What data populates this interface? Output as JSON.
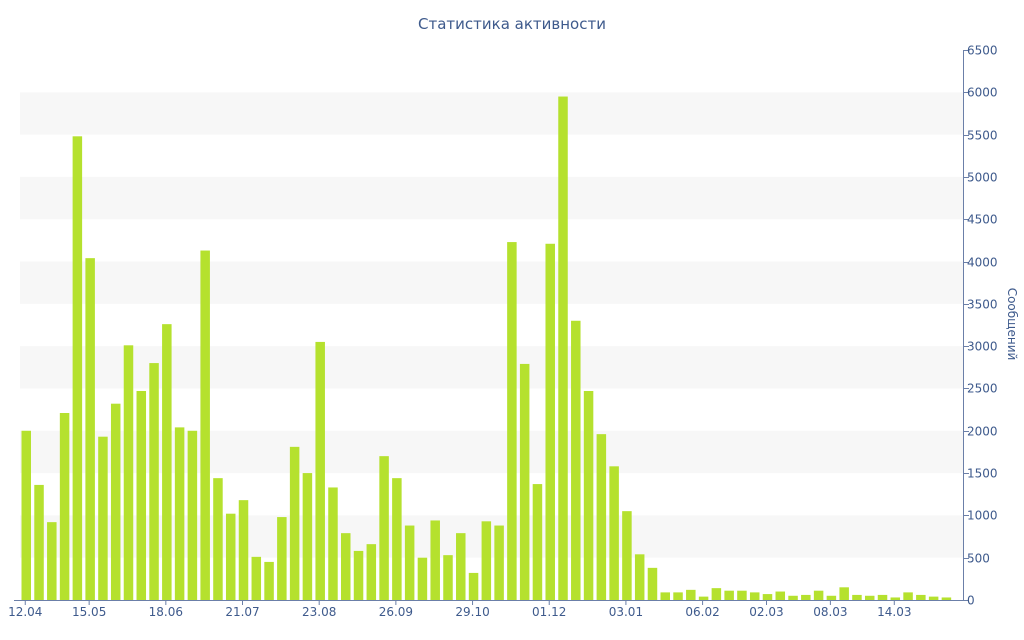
{
  "chart_data": {
    "type": "bar",
    "title": "Статистика активности",
    "xlabel": "",
    "ylabel": "Сообщений",
    "y_axis_side": "right",
    "ylim": [
      0,
      6500
    ],
    "yticks": [
      0,
      500,
      1000,
      1500,
      2000,
      2500,
      3000,
      3500,
      4000,
      4500,
      5000,
      5500,
      6000,
      6500
    ],
    "xtick_labels": [
      {
        "index": 0,
        "label": "12.04"
      },
      {
        "index": 5,
        "label": "15.05"
      },
      {
        "index": 11,
        "label": "18.06"
      },
      {
        "index": 17,
        "label": "21.07"
      },
      {
        "index": 23,
        "label": "23.08"
      },
      {
        "index": 29,
        "label": "26.09"
      },
      {
        "index": 35,
        "label": "29.10"
      },
      {
        "index": 41,
        "label": "01.12"
      },
      {
        "index": 47,
        "label": "03.01"
      },
      {
        "index": 53,
        "label": "06.02"
      },
      {
        "index": 58,
        "label": "02.03"
      },
      {
        "index": 63,
        "label": "08.03"
      },
      {
        "index": 68,
        "label": "14.03"
      }
    ],
    "values": [
      2000,
      1360,
      920,
      2210,
      5480,
      4040,
      1930,
      2320,
      3010,
      2470,
      2800,
      3260,
      2040,
      2000,
      4130,
      1440,
      1020,
      1180,
      510,
      450,
      980,
      1810,
      1500,
      3050,
      1330,
      790,
      580,
      660,
      1700,
      1440,
      880,
      500,
      940,
      530,
      790,
      320,
      930,
      880,
      4230,
      2790,
      1370,
      4210,
      5950,
      3300,
      2470,
      1960,
      1580,
      1050,
      540,
      380,
      90,
      90,
      120,
      40,
      140,
      110,
      110,
      90,
      70,
      100,
      50,
      60,
      110,
      50,
      150,
      60,
      50,
      60,
      30,
      90,
      60,
      40,
      30
    ],
    "grid": true,
    "bar_color": "#b5e12e",
    "band_color": "#f7f7f7",
    "axis_color": "#6b7fa8",
    "text_color": "#3e5a8c"
  }
}
